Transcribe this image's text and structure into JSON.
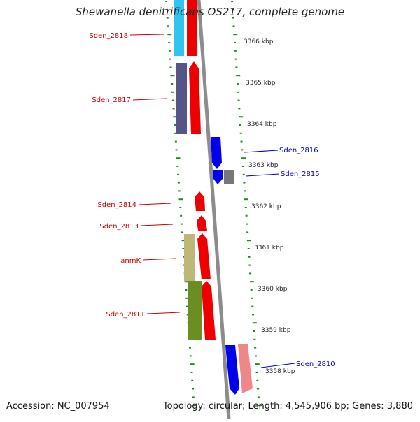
{
  "title": "Shewanella denitrificans OS217, complete genome",
  "footer": {
    "accession": "Accession: NC_007954",
    "topology": "Topology: circular; Length: 4,545,906 bp; Genes: 3,880"
  },
  "colors": {
    "backbone": "#8c8c8c",
    "tick": "#228822",
    "label_left": "#cc0000",
    "label_right": "#0000cc",
    "red_gene": "#ee0000",
    "blue_gene": "#0000ee",
    "grey_gene": "#777777",
    "pink_gene": "#ee8888",
    "cyan_cog": "#33c4ee",
    "purple_cog": "#555588",
    "olive_cog": "#bdb878",
    "green_cog": "#6b8e23"
  },
  "ticks": [
    {
      "label": "3366 kbp"
    },
    {
      "label": "3365 kbp"
    },
    {
      "label": "3364 kbp"
    },
    {
      "label": "3363 kbp"
    },
    {
      "label": "3362 kbp"
    },
    {
      "label": "3361 kbp"
    },
    {
      "label": "3360 kbp"
    },
    {
      "label": "3359 kbp"
    },
    {
      "label": "3358 kbp"
    }
  ],
  "genes": [
    {
      "name": "Sden_2818",
      "strand": "left"
    },
    {
      "name": "Sden_2817",
      "strand": "left"
    },
    {
      "name": "Sden_2816",
      "strand": "right"
    },
    {
      "name": "Sden_2815",
      "strand": "right"
    },
    {
      "name": "Sden_2814",
      "strand": "left"
    },
    {
      "name": "Sden_2813",
      "strand": "left"
    },
    {
      "name": "anmK",
      "strand": "left"
    },
    {
      "name": "Sden_2811",
      "strand": "left"
    },
    {
      "name": "Sden_2810",
      "strand": "right"
    }
  ]
}
